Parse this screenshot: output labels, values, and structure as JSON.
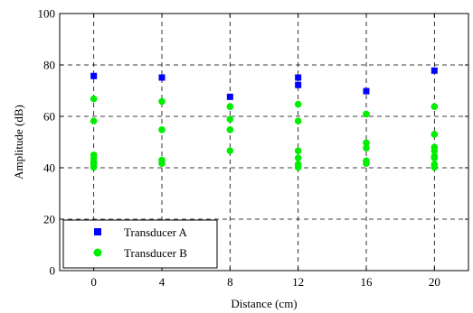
{
  "chart_data": {
    "type": "scatter",
    "title": "",
    "xlabel": "Distance (cm)",
    "ylabel": "Amplitude (dB)",
    "xlim": [
      -2,
      22
    ],
    "ylim": [
      0,
      100
    ],
    "xticks": [
      0,
      4,
      8,
      12,
      16,
      20
    ],
    "yticks": [
      0,
      20,
      40,
      60,
      80,
      100
    ],
    "grid": true,
    "legend_position": "bottom-left",
    "series": [
      {
        "name": "Transducer A",
        "marker": "square",
        "color": "#0000ff",
        "points": [
          {
            "x": 0,
            "y": 75.7
          },
          {
            "x": 4,
            "y": 75.1
          },
          {
            "x": 8,
            "y": 67.6
          },
          {
            "x": 12,
            "y": 72.2
          },
          {
            "x": 12,
            "y": 75.1
          },
          {
            "x": 16,
            "y": 69.8
          },
          {
            "x": 20,
            "y": 77.8
          }
        ]
      },
      {
        "name": "Transducer B",
        "marker": "circle",
        "color": "#00ee00",
        "points": [
          {
            "x": 0,
            "y": 66.8
          },
          {
            "x": 0,
            "y": 58.2
          },
          {
            "x": 0,
            "y": 45.0
          },
          {
            "x": 0,
            "y": 43.8
          },
          {
            "x": 0,
            "y": 42.3
          },
          {
            "x": 0,
            "y": 41.3
          },
          {
            "x": 0,
            "y": 40.2
          },
          {
            "x": 4,
            "y": 65.8
          },
          {
            "x": 4,
            "y": 54.8
          },
          {
            "x": 4,
            "y": 43.0
          },
          {
            "x": 4,
            "y": 41.7
          },
          {
            "x": 8,
            "y": 63.8
          },
          {
            "x": 8,
            "y": 58.9
          },
          {
            "x": 8,
            "y": 54.8
          },
          {
            "x": 8,
            "y": 46.6
          },
          {
            "x": 12,
            "y": 64.7
          },
          {
            "x": 12,
            "y": 58.2
          },
          {
            "x": 12,
            "y": 46.6
          },
          {
            "x": 12,
            "y": 43.8
          },
          {
            "x": 12,
            "y": 41.3
          },
          {
            "x": 12,
            "y": 40.2
          },
          {
            "x": 16,
            "y": 60.9
          },
          {
            "x": 16,
            "y": 49.7
          },
          {
            "x": 16,
            "y": 47.7
          },
          {
            "x": 16,
            "y": 42.7
          },
          {
            "x": 16,
            "y": 41.7
          },
          {
            "x": 20,
            "y": 63.8
          },
          {
            "x": 20,
            "y": 53.0
          },
          {
            "x": 20,
            "y": 48.0
          },
          {
            "x": 20,
            "y": 46.6
          },
          {
            "x": 20,
            "y": 44.5
          },
          {
            "x": 20,
            "y": 43.8
          },
          {
            "x": 20,
            "y": 41.3
          },
          {
            "x": 20,
            "y": 40.2
          }
        ]
      }
    ]
  }
}
